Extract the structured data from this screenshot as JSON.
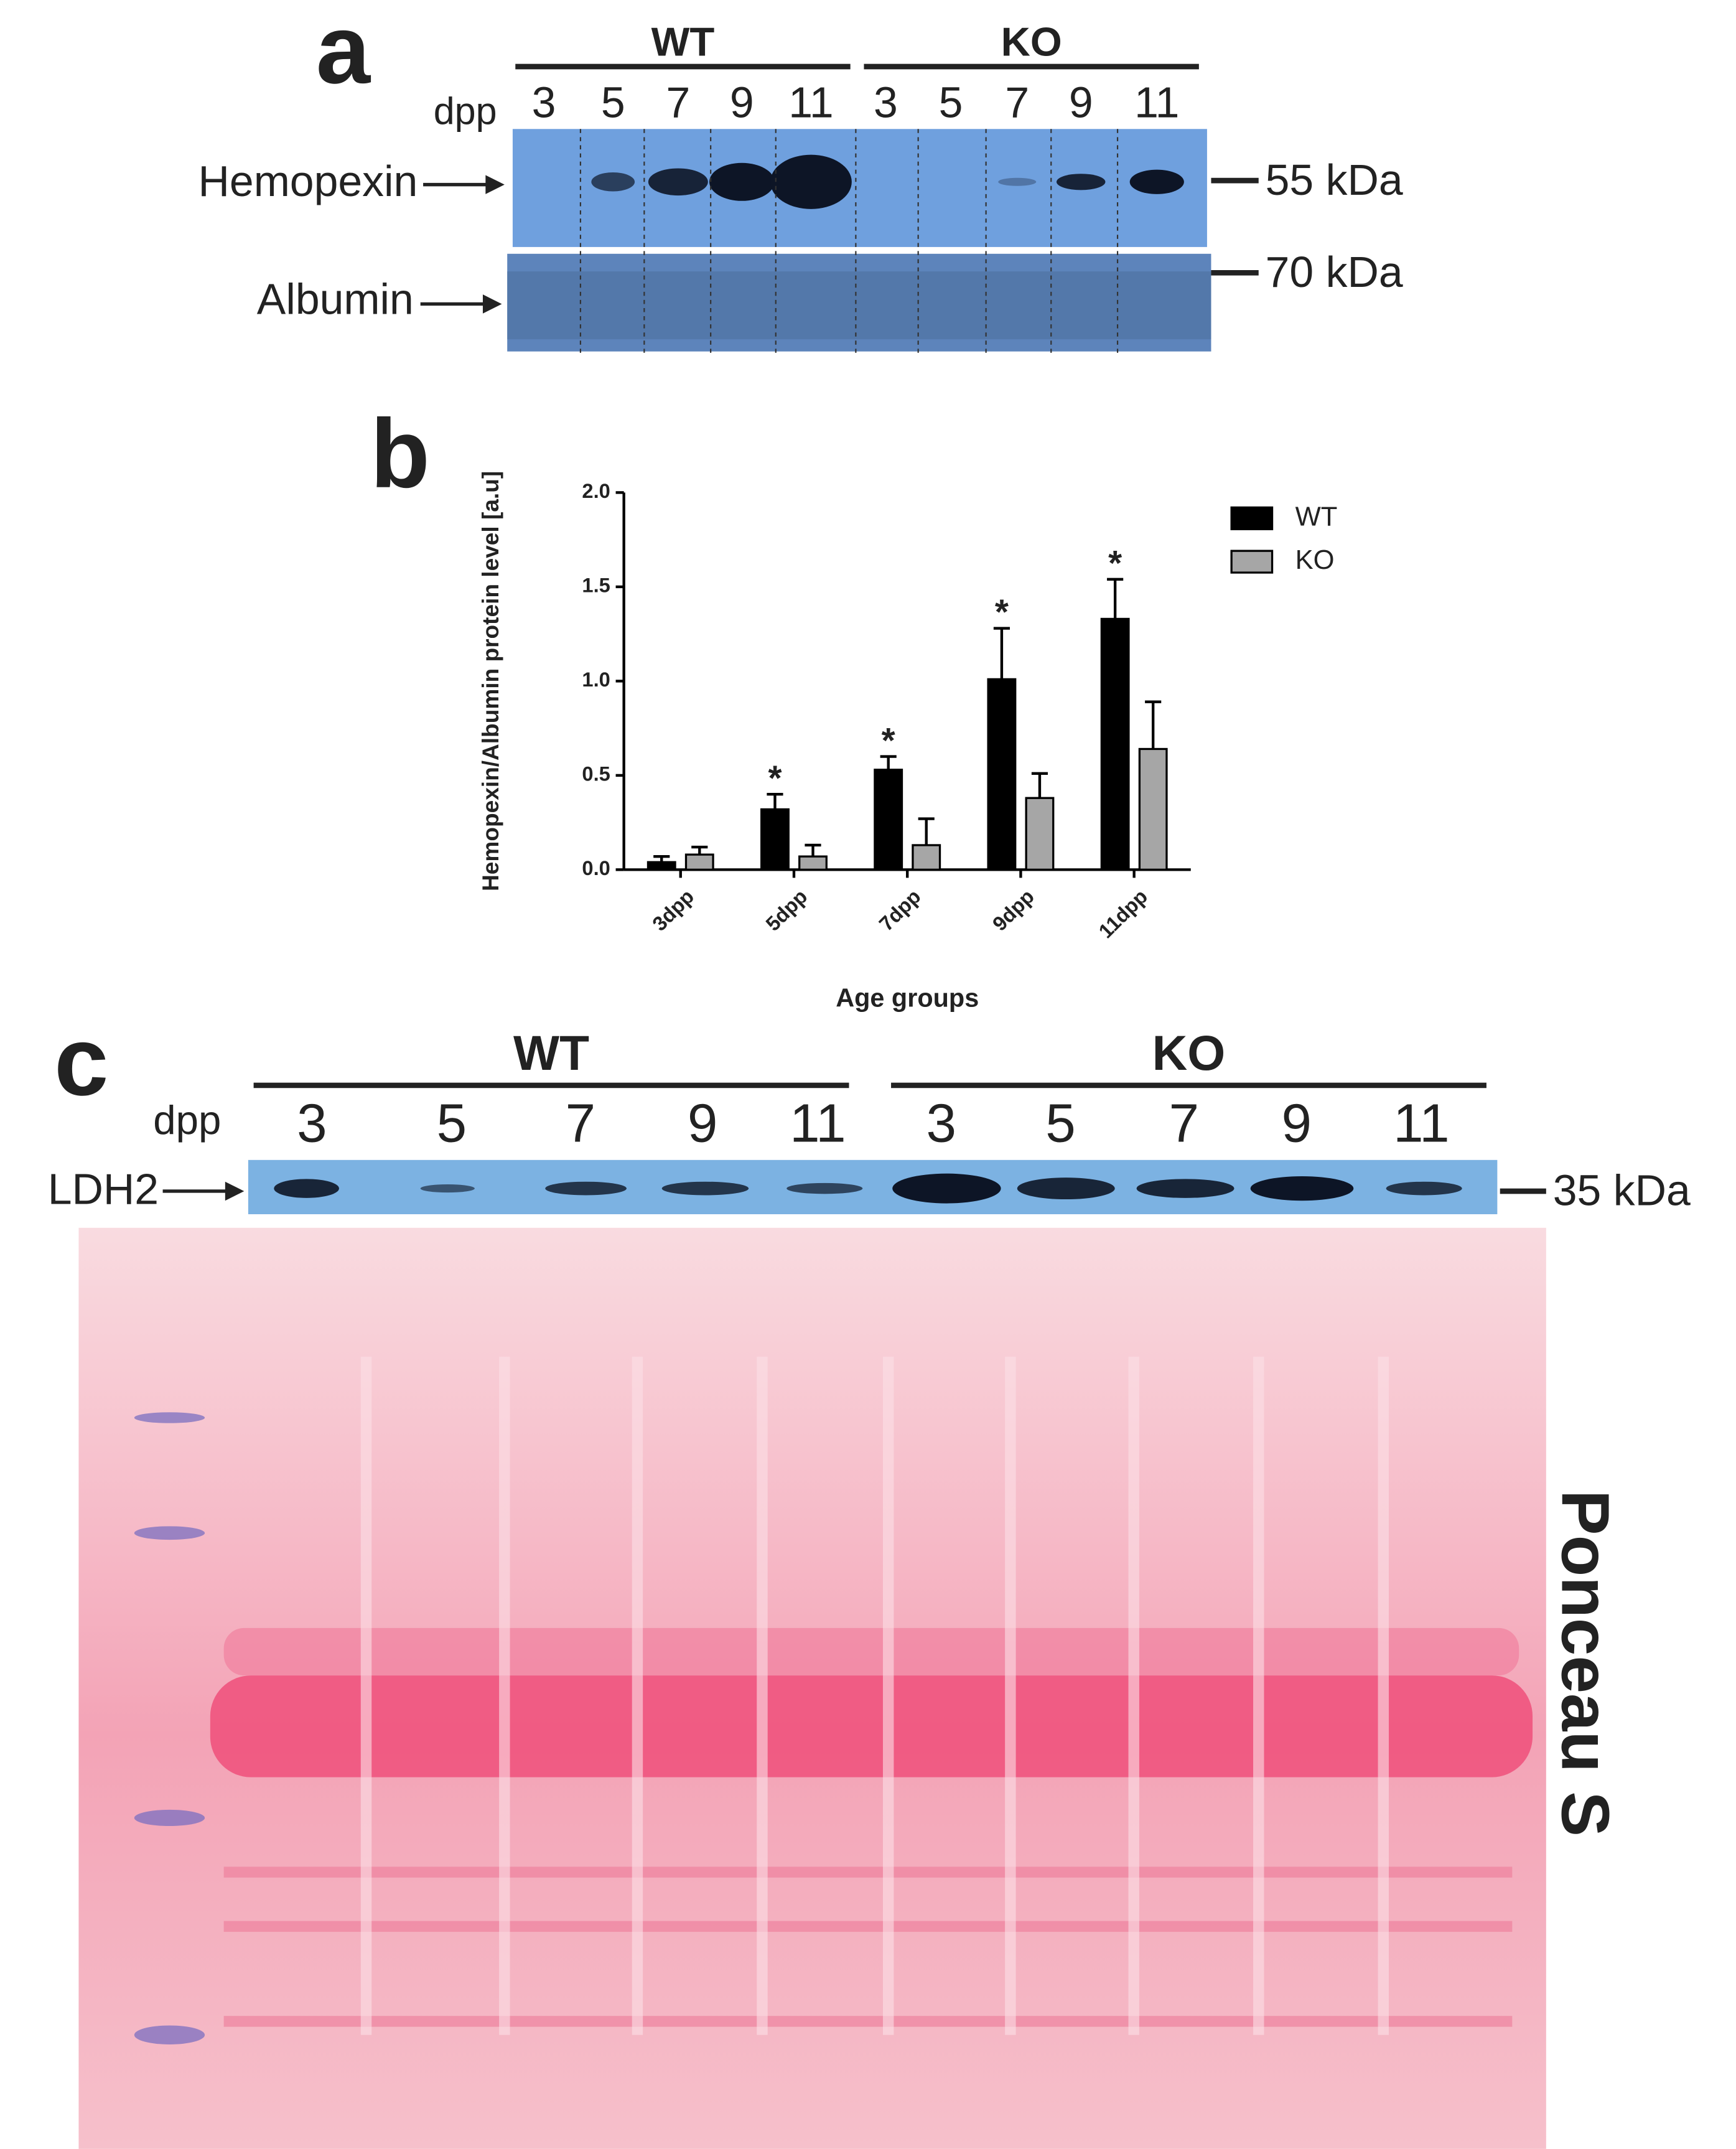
{
  "panel_a": {
    "label": "a",
    "groups": [
      "WT",
      "KO"
    ],
    "dpp": "dpp",
    "lanes": [
      "3",
      "5",
      "7",
      "9",
      "11",
      "3",
      "5",
      "7",
      "9",
      "11"
    ],
    "rows": [
      "Hemopexin",
      "Albumin"
    ],
    "markers": [
      "55 kDa",
      "70 kDa"
    ]
  },
  "chart_data": {
    "type": "bar",
    "panel_label": "b",
    "categories": [
      "3dpp",
      "5dpp",
      "7dpp",
      "9dpp",
      "11dpp"
    ],
    "series": [
      {
        "name": "WT",
        "color": "#000000",
        "values": [
          0.04,
          0.32,
          0.53,
          1.01,
          1.33
        ],
        "errors": [
          0.03,
          0.08,
          0.07,
          0.27,
          0.21
        ],
        "significance": [
          null,
          "*",
          "*",
          "*",
          "*"
        ]
      },
      {
        "name": "KO",
        "color": "#a6a6a6",
        "values": [
          0.08,
          0.07,
          0.13,
          0.38,
          0.64
        ],
        "errors": [
          0.04,
          0.06,
          0.14,
          0.13,
          0.25
        ]
      }
    ],
    "ylim": [
      0,
      2
    ],
    "yticks": [
      {
        "value": 0,
        "label": "0.0"
      },
      {
        "value": 0.5,
        "label": "0.5"
      },
      {
        "value": 1,
        "label": "1.0"
      },
      {
        "value": 1.5,
        "label": "1.5"
      },
      {
        "value": 2,
        "label": "2.0"
      }
    ],
    "ylabel": "Hemopexin/Albumin protein level [a.u]",
    "xlabel": "Age groups",
    "legend": "upper right"
  },
  "panel_c": {
    "label": "c",
    "groups": [
      "WT",
      "KO"
    ],
    "dpp": "dpp",
    "lanes": [
      "3",
      "5",
      "7",
      "9",
      "11",
      "3",
      "5",
      "7",
      "9",
      "11"
    ],
    "row": "LDH2",
    "marker": "35 kDa",
    "stain": "Ponceau S"
  }
}
